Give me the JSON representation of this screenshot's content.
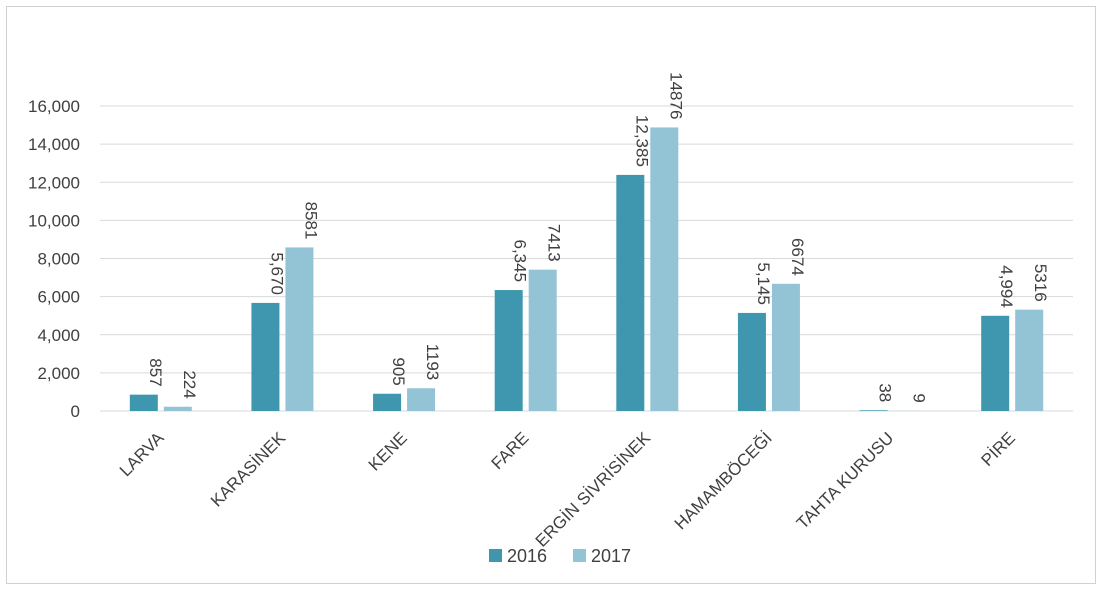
{
  "chart_data": {
    "type": "bar",
    "title": "",
    "xlabel": "",
    "ylabel": "",
    "categories": [
      "LARVA",
      "KARASİNEK",
      "KENE",
      "FARE",
      "ERGİN SİVRİSİNEK",
      "HAMAMBÖCEĞİ",
      "TAHTA KURUSU",
      "PİRE"
    ],
    "series": [
      {
        "name": "2016",
        "color": "#3e97af",
        "values": [
          857,
          5670,
          905,
          6345,
          12385,
          5145,
          38,
          4994
        ],
        "labels": [
          "857",
          "5,670",
          "905",
          "6,345",
          "12,385",
          "5,145",
          "38",
          "4,994"
        ]
      },
      {
        "name": "2017",
        "color": "#93c4d6",
        "values": [
          224,
          8581,
          1193,
          7413,
          14876,
          6674,
          9,
          5316
        ],
        "labels": [
          "224",
          "8581",
          "1193",
          "7413",
          "14876",
          "6674",
          "9",
          "5316"
        ]
      }
    ],
    "ylim": [
      0,
      16000
    ],
    "yticks": [
      0,
      2000,
      4000,
      6000,
      8000,
      10000,
      12000,
      14000,
      16000
    ],
    "ytick_labels": [
      "0",
      "2,000",
      "4,000",
      "6,000",
      "8,000",
      "10,000",
      "12,000",
      "14,000",
      "16,000"
    ],
    "grid": true,
    "legend_position": "bottom-center",
    "gridline_color": "#d9d9d9"
  }
}
